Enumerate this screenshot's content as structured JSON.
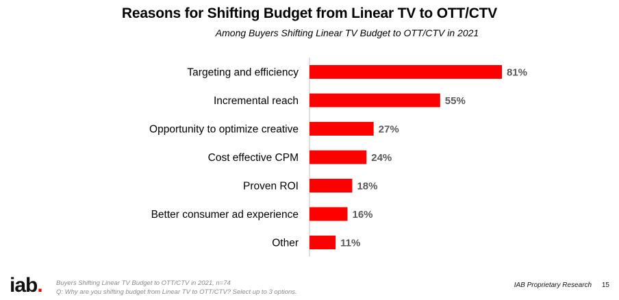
{
  "title": "Reasons for Shifting Budget from Linear TV to OTT/CTV",
  "subtitle": "Among Buyers Shifting Linear TV Budget to OTT/CTV in 2021",
  "chart_data": {
    "type": "bar",
    "orientation": "horizontal",
    "categories": [
      "Targeting and efficiency",
      "Incremental reach",
      "Opportunity to optimize creative",
      "Cost effective CPM",
      "Proven ROI",
      "Better consumer ad experience",
      "Other"
    ],
    "values": [
      81,
      55,
      27,
      24,
      18,
      16,
      11
    ],
    "value_labels": [
      "81%",
      "55%",
      "27%",
      "24%",
      "18%",
      "16%",
      "11%"
    ],
    "xlim": [
      0,
      100
    ],
    "bar_color": "#ff0000",
    "grid": false,
    "legend": "none"
  },
  "footer": {
    "logo_text": "iab",
    "logo_dot": ".",
    "logo_dot_color": "#e60000",
    "note_base": "Buyers Shifting Linear TV Budget to OTT/CTV in 2021, n=74",
    "note_question": "Q: Why are you shifting budget from Linear TV to OTT/CTV? Select up to 3 options.",
    "label": "IAB Proprietary Research",
    "page_number": "15"
  }
}
